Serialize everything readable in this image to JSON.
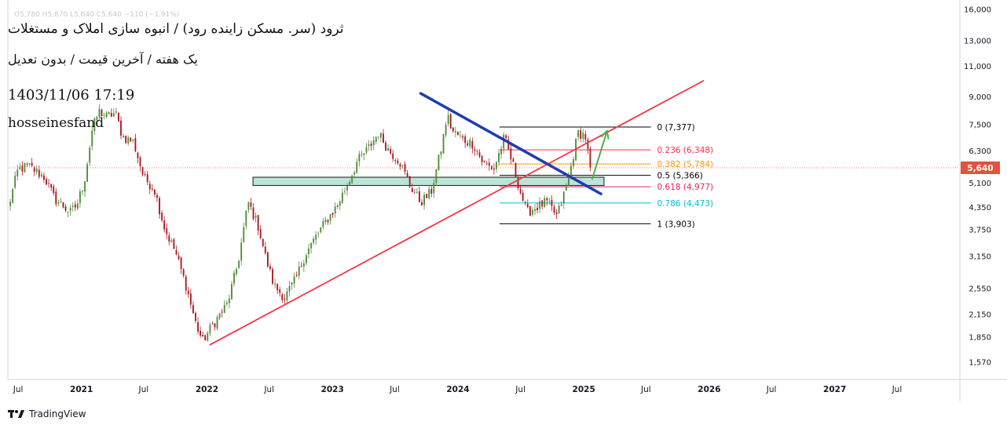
{
  "header": {
    "title": "ثرود (سر. مسکن زاینده رود) / انبوه سازی املاک و مستغلات",
    "subtitle": "یک هفته / آخرین قیمت / بدون تعدیل",
    "datetime": "1403/11/06 17:19",
    "author": "hosseinesfand",
    "ohlc": "O5,780  H5,870  L5,640  C5,640  −110  (−1.91%)"
  },
  "brand": {
    "name": "TradingView"
  },
  "colors": {
    "candle_up": "#4f8a3a",
    "candle_down": "#a8171e",
    "trendline_red": "#f23645",
    "trendline_blue": "#1e3cb4",
    "zone_fill": "#a3dccb",
    "arrow_green": "#4caf50",
    "price_tag": "#e0533e",
    "fib_0382": "#ff9800",
    "fib_0786": "#00bcd4"
  },
  "chart_data": {
    "type": "candlestick",
    "scale": "log",
    "ylim": [
      1400,
      16500
    ],
    "xlim": [
      "2020-06-01",
      "2027-12-31"
    ],
    "y_ticks": [
      16000,
      13000,
      11000,
      9000,
      7500,
      6300,
      5100,
      4350,
      3750,
      3150,
      2550,
      2150,
      1850,
      1570
    ],
    "y_tick_labels": [
      "16,000",
      "13,000",
      "11,000",
      "9,000",
      "7,500",
      "6,300",
      "5,100",
      "4,350",
      "3,750",
      "3,150",
      "2,550",
      "2,150",
      "1,850",
      "1,570"
    ],
    "x_ticks": [
      {
        "date": "2020-07-01",
        "label": "Jul",
        "bold": false
      },
      {
        "date": "2021-01-01",
        "label": "2021",
        "bold": true
      },
      {
        "date": "2021-07-01",
        "label": "Jul",
        "bold": false
      },
      {
        "date": "2022-01-01",
        "label": "2022",
        "bold": true
      },
      {
        "date": "2022-07-01",
        "label": "Jul",
        "bold": false
      },
      {
        "date": "2023-01-01",
        "label": "2023",
        "bold": true
      },
      {
        "date": "2023-07-01",
        "label": "Jul",
        "bold": false
      },
      {
        "date": "2024-01-01",
        "label": "2024",
        "bold": true
      },
      {
        "date": "2024-07-01",
        "label": "Jul",
        "bold": false
      },
      {
        "date": "2025-01-01",
        "label": "2025",
        "bold": true
      },
      {
        "date": "2025-07-01",
        "label": "Jul",
        "bold": false
      },
      {
        "date": "2026-01-01",
        "label": "2026",
        "bold": true
      },
      {
        "date": "2026-07-01",
        "label": "Jul",
        "bold": false
      },
      {
        "date": "2027-01-01",
        "label": "2027",
        "bold": true
      },
      {
        "date": "2027-07-01",
        "label": "Jul",
        "bold": false
      }
    ],
    "last_price": 5640,
    "last_price_label": "5,640",
    "price_path": [
      [
        "2020-06-01",
        4300
      ],
      [
        "2020-07-01",
        5600
      ],
      [
        "2020-08-01",
        5700
      ],
      [
        "2020-09-15",
        5300
      ],
      [
        "2020-10-15",
        4600
      ],
      [
        "2020-12-01",
        4200
      ],
      [
        "2020-12-20",
        4450
      ],
      [
        "2021-01-10",
        5200
      ],
      [
        "2021-02-01",
        7200
      ],
      [
        "2021-02-20",
        8200
      ],
      [
        "2021-03-15",
        7900
      ],
      [
        "2021-04-10",
        8100
      ],
      [
        "2021-05-01",
        6900
      ],
      [
        "2021-06-01",
        6700
      ],
      [
        "2021-07-01",
        5300
      ],
      [
        "2021-08-01",
        4900
      ],
      [
        "2021-09-01",
        3750
      ],
      [
        "2021-10-01",
        3250
      ],
      [
        "2021-11-01",
        2600
      ],
      [
        "2021-12-01",
        2000
      ],
      [
        "2021-12-20",
        1800
      ],
      [
        "2022-01-10",
        1950
      ],
      [
        "2022-02-01",
        2100
      ],
      [
        "2022-03-01",
        2300
      ],
      [
        "2022-04-01",
        3000
      ],
      [
        "2022-05-01",
        4500
      ],
      [
        "2022-06-01",
        3800
      ],
      [
        "2022-06-20",
        3150
      ],
      [
        "2022-07-15",
        2600
      ],
      [
        "2022-08-15",
        2400
      ],
      [
        "2022-09-15",
        2700
      ],
      [
        "2022-10-15",
        3200
      ],
      [
        "2022-11-15",
        3600
      ],
      [
        "2022-12-15",
        4000
      ],
      [
        "2023-01-15",
        4400
      ],
      [
        "2023-02-15",
        5100
      ],
      [
        "2023-03-15",
        5900
      ],
      [
        "2023-04-15",
        6400
      ],
      [
        "2023-05-15",
        7100
      ],
      [
        "2023-06-15",
        6300
      ],
      [
        "2023-07-15",
        5900
      ],
      [
        "2023-08-15",
        5000
      ],
      [
        "2023-09-15",
        4500
      ],
      [
        "2023-10-15",
        4800
      ],
      [
        "2023-11-15",
        6500
      ],
      [
        "2023-12-01",
        8000
      ],
      [
        "2023-12-15",
        7200
      ],
      [
        "2024-01-15",
        6800
      ],
      [
        "2024-02-15",
        6600
      ],
      [
        "2024-03-15",
        5800
      ],
      [
        "2024-04-15",
        5600
      ],
      [
        "2024-05-15",
        6900
      ],
      [
        "2024-06-15",
        5500
      ],
      [
        "2024-07-01",
        4800
      ],
      [
        "2024-07-20",
        4200
      ],
      [
        "2024-08-15",
        4350
      ],
      [
        "2024-09-15",
        4500
      ],
      [
        "2024-10-15",
        4100
      ],
      [
        "2024-11-15",
        5100
      ],
      [
        "2024-12-15",
        7100
      ],
      [
        "2025-01-05",
        7000
      ],
      [
        "2025-01-20",
        5640
      ]
    ],
    "trendlines": [
      {
        "name": "support",
        "color": "#f23645",
        "from": [
          "2022-01-10",
          1760
        ],
        "to": [
          "2025-12-15",
          10000
        ]
      },
      {
        "name": "resistance",
        "color": "#1e3cb4",
        "from": [
          "2023-09-15",
          9200
        ],
        "to": [
          "2025-02-20",
          4750
        ]
      }
    ],
    "zone": {
      "from": "2022-05-15",
      "to": "2025-03-01",
      "top": 5300,
      "bottom": 5020
    },
    "arrow": {
      "from": [
        "2025-01-25",
        5220
      ],
      "to": [
        "2025-03-10",
        7200
      ],
      "color": "#4caf50"
    },
    "fib": {
      "from": "2024-05-01",
      "to": "2025-07-15",
      "levels": [
        {
          "ratio": "0",
          "value": 7377,
          "label": "0 (7,377)",
          "color": "#000000"
        },
        {
          "ratio": "0.236",
          "value": 6348,
          "label": "0.236 (6,348)",
          "color": "#f23645"
        },
        {
          "ratio": "0.382",
          "value": 5784,
          "label": "0.382 (5,784)",
          "color": "#ff9800"
        },
        {
          "ratio": "0.5",
          "value": 5366,
          "label": "0.5 (5,366)",
          "color": "#000000"
        },
        {
          "ratio": "0.618",
          "value": 4977,
          "label": "0.618 (4,977)",
          "color": "#e91e63"
        },
        {
          "ratio": "0.786",
          "value": 4473,
          "label": "0.786 (4,473)",
          "color": "#00bcd4"
        },
        {
          "ratio": "1",
          "value": 3903,
          "label": "1 (3,903)",
          "color": "#000000"
        }
      ]
    }
  }
}
